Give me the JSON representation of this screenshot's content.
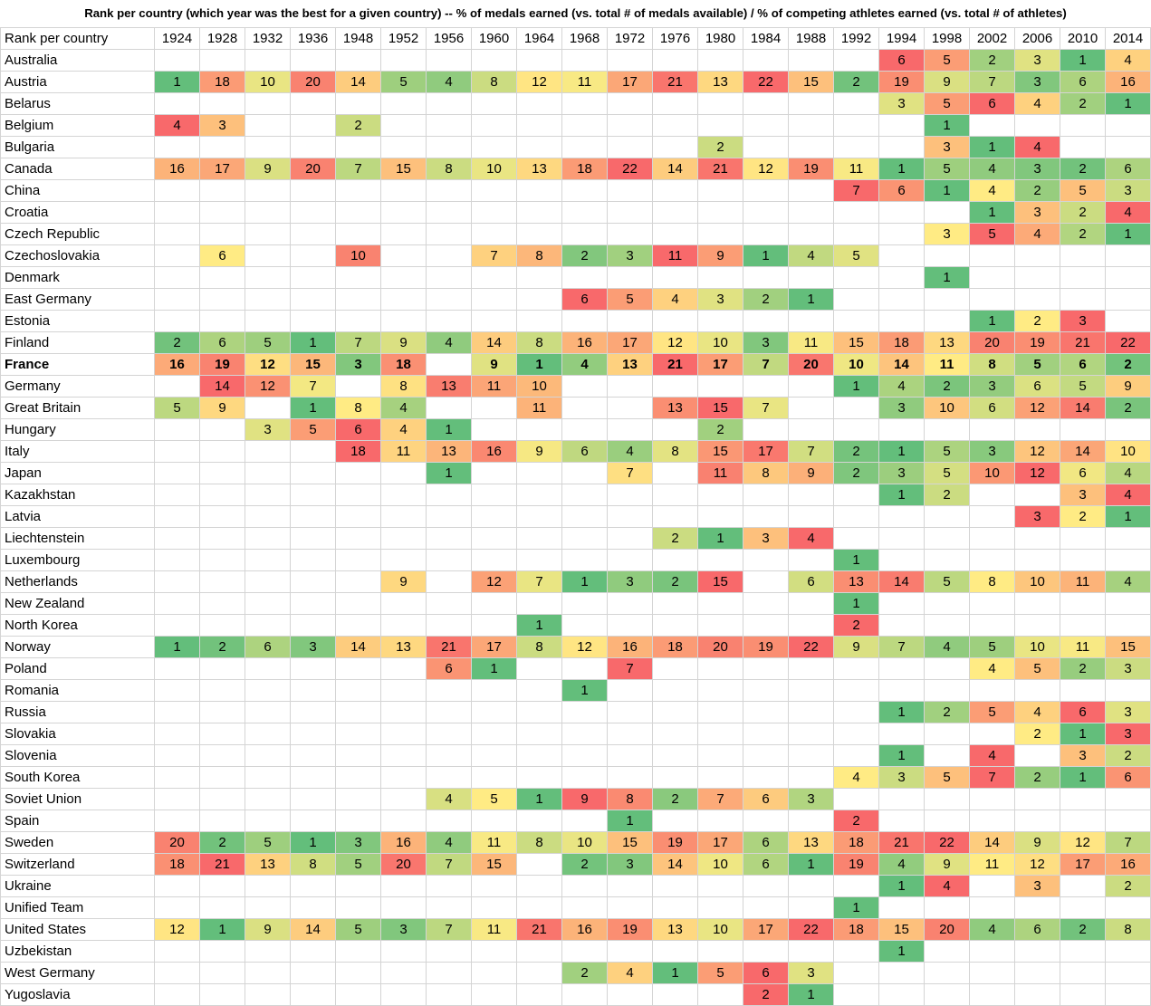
{
  "title": "Rank per country (which year was the best for a given country) -- % of medals earned (vs. total # of medals available) / % of competing athletes earned (vs. total # of athletes)",
  "chart_data": {
    "type": "heatmap",
    "corner_label": "Rank per country",
    "color_scale": {
      "low_rank": "#63BE7B",
      "mid_rank": "#FFEB84",
      "high_rank": "#F8696B"
    },
    "highlighted_row": "France",
    "years": [
      "1924",
      "1928",
      "1932",
      "1936",
      "1948",
      "1952",
      "1956",
      "1960",
      "1964",
      "1968",
      "1972",
      "1976",
      "1980",
      "1984",
      "1988",
      "1992",
      "1994",
      "1998",
      "2002",
      "2006",
      "2010",
      "2014"
    ],
    "rows": [
      {
        "country": "Australia",
        "ranks": [
          null,
          null,
          null,
          null,
          null,
          null,
          null,
          null,
          null,
          null,
          null,
          null,
          null,
          null,
          null,
          null,
          6,
          5,
          2,
          3,
          1,
          4
        ]
      },
      {
        "country": "Austria",
        "ranks": [
          1,
          18,
          10,
          20,
          14,
          5,
          4,
          8,
          12,
          11,
          17,
          21,
          13,
          22,
          15,
          2,
          19,
          9,
          7,
          3,
          6,
          16
        ]
      },
      {
        "country": "Belarus",
        "ranks": [
          null,
          null,
          null,
          null,
          null,
          null,
          null,
          null,
          null,
          null,
          null,
          null,
          null,
          null,
          null,
          null,
          3,
          5,
          6,
          4,
          2,
          1
        ]
      },
      {
        "country": "Belgium",
        "ranks": [
          4,
          3,
          null,
          null,
          2,
          null,
          null,
          null,
          null,
          null,
          null,
          null,
          null,
          null,
          null,
          null,
          null,
          1,
          null,
          null,
          null,
          null
        ]
      },
      {
        "country": "Bulgaria",
        "ranks": [
          null,
          null,
          null,
          null,
          null,
          null,
          null,
          null,
          null,
          null,
          null,
          null,
          2,
          null,
          null,
          null,
          null,
          3,
          1,
          4,
          null,
          null
        ]
      },
      {
        "country": "Canada",
        "ranks": [
          16,
          17,
          9,
          20,
          7,
          15,
          8,
          10,
          13,
          18,
          22,
          14,
          21,
          12,
          19,
          11,
          1,
          5,
          4,
          3,
          2,
          6
        ]
      },
      {
        "country": "China",
        "ranks": [
          null,
          null,
          null,
          null,
          null,
          null,
          null,
          null,
          null,
          null,
          null,
          null,
          null,
          null,
          null,
          7,
          6,
          1,
          4,
          2,
          5,
          3
        ]
      },
      {
        "country": "Croatia",
        "ranks": [
          null,
          null,
          null,
          null,
          null,
          null,
          null,
          null,
          null,
          null,
          null,
          null,
          null,
          null,
          null,
          null,
          null,
          null,
          1,
          3,
          2,
          4
        ]
      },
      {
        "country": "Czech Republic",
        "ranks": [
          null,
          null,
          null,
          null,
          null,
          null,
          null,
          null,
          null,
          null,
          null,
          null,
          null,
          null,
          null,
          null,
          null,
          3,
          5,
          4,
          2,
          1
        ]
      },
      {
        "country": "Czechoslovakia",
        "ranks": [
          null,
          6,
          null,
          null,
          10,
          null,
          null,
          7,
          8,
          2,
          3,
          11,
          9,
          1,
          4,
          5,
          null,
          null,
          null,
          null,
          null,
          null
        ]
      },
      {
        "country": "Denmark",
        "ranks": [
          null,
          null,
          null,
          null,
          null,
          null,
          null,
          null,
          null,
          null,
          null,
          null,
          null,
          null,
          null,
          null,
          null,
          1,
          null,
          null,
          null,
          null
        ]
      },
      {
        "country": "East Germany",
        "ranks": [
          null,
          null,
          null,
          null,
          null,
          null,
          null,
          null,
          null,
          6,
          5,
          4,
          3,
          2,
          1,
          null,
          null,
          null,
          null,
          null,
          null,
          null
        ]
      },
      {
        "country": "Estonia",
        "ranks": [
          null,
          null,
          null,
          null,
          null,
          null,
          null,
          null,
          null,
          null,
          null,
          null,
          null,
          null,
          null,
          null,
          null,
          null,
          1,
          2,
          3,
          null
        ]
      },
      {
        "country": "Finland",
        "ranks": [
          2,
          6,
          5,
          1,
          7,
          9,
          4,
          14,
          8,
          16,
          17,
          12,
          10,
          3,
          11,
          15,
          18,
          13,
          20,
          19,
          21,
          22
        ]
      },
      {
        "country": "France",
        "ranks": [
          16,
          19,
          12,
          15,
          3,
          18,
          null,
          9,
          1,
          4,
          13,
          21,
          17,
          7,
          20,
          10,
          14,
          11,
          8,
          5,
          6,
          2
        ]
      },
      {
        "country": "Germany",
        "ranks": [
          null,
          14,
          12,
          7,
          null,
          8,
          13,
          11,
          10,
          null,
          null,
          null,
          null,
          null,
          null,
          1,
          4,
          2,
          3,
          6,
          5,
          9
        ]
      },
      {
        "country": "Great Britain",
        "ranks": [
          5,
          9,
          null,
          1,
          8,
          4,
          null,
          null,
          11,
          null,
          null,
          13,
          15,
          7,
          null,
          null,
          3,
          10,
          6,
          12,
          14,
          2
        ]
      },
      {
        "country": "Hungary",
        "ranks": [
          null,
          null,
          3,
          5,
          6,
          4,
          1,
          null,
          null,
          null,
          null,
          null,
          2,
          null,
          null,
          null,
          null,
          null,
          null,
          null,
          null,
          null
        ]
      },
      {
        "country": "Italy",
        "ranks": [
          null,
          null,
          null,
          null,
          18,
          11,
          13,
          16,
          9,
          6,
          4,
          8,
          15,
          17,
          7,
          2,
          1,
          5,
          3,
          12,
          14,
          10
        ]
      },
      {
        "country": "Japan",
        "ranks": [
          null,
          null,
          null,
          null,
          null,
          null,
          1,
          null,
          null,
          null,
          7,
          null,
          11,
          8,
          9,
          2,
          3,
          5,
          10,
          12,
          6,
          4
        ]
      },
      {
        "country": "Kazakhstan",
        "ranks": [
          null,
          null,
          null,
          null,
          null,
          null,
          null,
          null,
          null,
          null,
          null,
          null,
          null,
          null,
          null,
          null,
          1,
          2,
          null,
          null,
          3,
          4
        ]
      },
      {
        "country": "Latvia",
        "ranks": [
          null,
          null,
          null,
          null,
          null,
          null,
          null,
          null,
          null,
          null,
          null,
          null,
          null,
          null,
          null,
          null,
          null,
          null,
          null,
          3,
          2,
          1
        ]
      },
      {
        "country": "Liechtenstein",
        "ranks": [
          null,
          null,
          null,
          null,
          null,
          null,
          null,
          null,
          null,
          null,
          null,
          2,
          1,
          3,
          4,
          null,
          null,
          null,
          null,
          null,
          null,
          null
        ]
      },
      {
        "country": "Luxembourg",
        "ranks": [
          null,
          null,
          null,
          null,
          null,
          null,
          null,
          null,
          null,
          null,
          null,
          null,
          null,
          null,
          null,
          1,
          null,
          null,
          null,
          null,
          null,
          null
        ]
      },
      {
        "country": "Netherlands",
        "ranks": [
          null,
          null,
          null,
          null,
          null,
          9,
          null,
          12,
          7,
          1,
          3,
          2,
          15,
          null,
          6,
          13,
          14,
          5,
          8,
          10,
          11,
          4
        ]
      },
      {
        "country": "New Zealand",
        "ranks": [
          null,
          null,
          null,
          null,
          null,
          null,
          null,
          null,
          null,
          null,
          null,
          null,
          null,
          null,
          null,
          1,
          null,
          null,
          null,
          null,
          null,
          null
        ]
      },
      {
        "country": "North Korea",
        "ranks": [
          null,
          null,
          null,
          null,
          null,
          null,
          null,
          null,
          1,
          null,
          null,
          null,
          null,
          null,
          null,
          2,
          null,
          null,
          null,
          null,
          null,
          null
        ]
      },
      {
        "country": "Norway",
        "ranks": [
          1,
          2,
          6,
          3,
          14,
          13,
          21,
          17,
          8,
          12,
          16,
          18,
          20,
          19,
          22,
          9,
          7,
          4,
          5,
          10,
          11,
          15
        ]
      },
      {
        "country": "Poland",
        "ranks": [
          null,
          null,
          null,
          null,
          null,
          null,
          6,
          1,
          null,
          null,
          7,
          null,
          null,
          null,
          null,
          null,
          null,
          null,
          4,
          5,
          2,
          3
        ]
      },
      {
        "country": "Romania",
        "ranks": [
          null,
          null,
          null,
          null,
          null,
          null,
          null,
          null,
          null,
          1,
          null,
          null,
          null,
          null,
          null,
          null,
          null,
          null,
          null,
          null,
          null,
          null
        ]
      },
      {
        "country": "Russia",
        "ranks": [
          null,
          null,
          null,
          null,
          null,
          null,
          null,
          null,
          null,
          null,
          null,
          null,
          null,
          null,
          null,
          null,
          1,
          2,
          5,
          4,
          6,
          3
        ]
      },
      {
        "country": "Slovakia",
        "ranks": [
          null,
          null,
          null,
          null,
          null,
          null,
          null,
          null,
          null,
          null,
          null,
          null,
          null,
          null,
          null,
          null,
          null,
          null,
          null,
          2,
          1,
          3
        ]
      },
      {
        "country": "Slovenia",
        "ranks": [
          null,
          null,
          null,
          null,
          null,
          null,
          null,
          null,
          null,
          null,
          null,
          null,
          null,
          null,
          null,
          null,
          1,
          null,
          4,
          null,
          3,
          2
        ]
      },
      {
        "country": "South Korea",
        "ranks": [
          null,
          null,
          null,
          null,
          null,
          null,
          null,
          null,
          null,
          null,
          null,
          null,
          null,
          null,
          null,
          4,
          3,
          5,
          7,
          2,
          1,
          6
        ]
      },
      {
        "country": "Soviet Union",
        "ranks": [
          null,
          null,
          null,
          null,
          null,
          null,
          4,
          5,
          1,
          9,
          8,
          2,
          7,
          6,
          3,
          null,
          null,
          null,
          null,
          null,
          null,
          null
        ]
      },
      {
        "country": "Spain",
        "ranks": [
          null,
          null,
          null,
          null,
          null,
          null,
          null,
          null,
          null,
          null,
          1,
          null,
          null,
          null,
          null,
          2,
          null,
          null,
          null,
          null,
          null,
          null
        ]
      },
      {
        "country": "Sweden",
        "ranks": [
          20,
          2,
          5,
          1,
          3,
          16,
          4,
          11,
          8,
          10,
          15,
          19,
          17,
          6,
          13,
          18,
          21,
          22,
          14,
          9,
          12,
          7
        ]
      },
      {
        "country": "Switzerland",
        "ranks": [
          18,
          21,
          13,
          8,
          5,
          20,
          7,
          15,
          null,
          2,
          3,
          14,
          10,
          6,
          1,
          19,
          4,
          9,
          11,
          12,
          17,
          16
        ]
      },
      {
        "country": "Ukraine",
        "ranks": [
          null,
          null,
          null,
          null,
          null,
          null,
          null,
          null,
          null,
          null,
          null,
          null,
          null,
          null,
          null,
          null,
          1,
          4,
          null,
          3,
          null,
          2
        ]
      },
      {
        "country": "Unified Team",
        "ranks": [
          null,
          null,
          null,
          null,
          null,
          null,
          null,
          null,
          null,
          null,
          null,
          null,
          null,
          null,
          null,
          1,
          null,
          null,
          null,
          null,
          null,
          null
        ]
      },
      {
        "country": "United States",
        "ranks": [
          12,
          1,
          9,
          14,
          5,
          3,
          7,
          11,
          21,
          16,
          19,
          13,
          10,
          17,
          22,
          18,
          15,
          20,
          4,
          6,
          2,
          8
        ]
      },
      {
        "country": "Uzbekistan",
        "ranks": [
          null,
          null,
          null,
          null,
          null,
          null,
          null,
          null,
          null,
          null,
          null,
          null,
          null,
          null,
          null,
          null,
          1,
          null,
          null,
          null,
          null,
          null
        ]
      },
      {
        "country": "West Germany",
        "ranks": [
          null,
          null,
          null,
          null,
          null,
          null,
          null,
          null,
          null,
          2,
          4,
          1,
          5,
          6,
          3,
          null,
          null,
          null,
          null,
          null,
          null,
          null
        ]
      },
      {
        "country": "Yugoslavia",
        "ranks": [
          null,
          null,
          null,
          null,
          null,
          null,
          null,
          null,
          null,
          null,
          null,
          null,
          null,
          2,
          1,
          null,
          null,
          null,
          null,
          null,
          null,
          null
        ]
      }
    ]
  }
}
